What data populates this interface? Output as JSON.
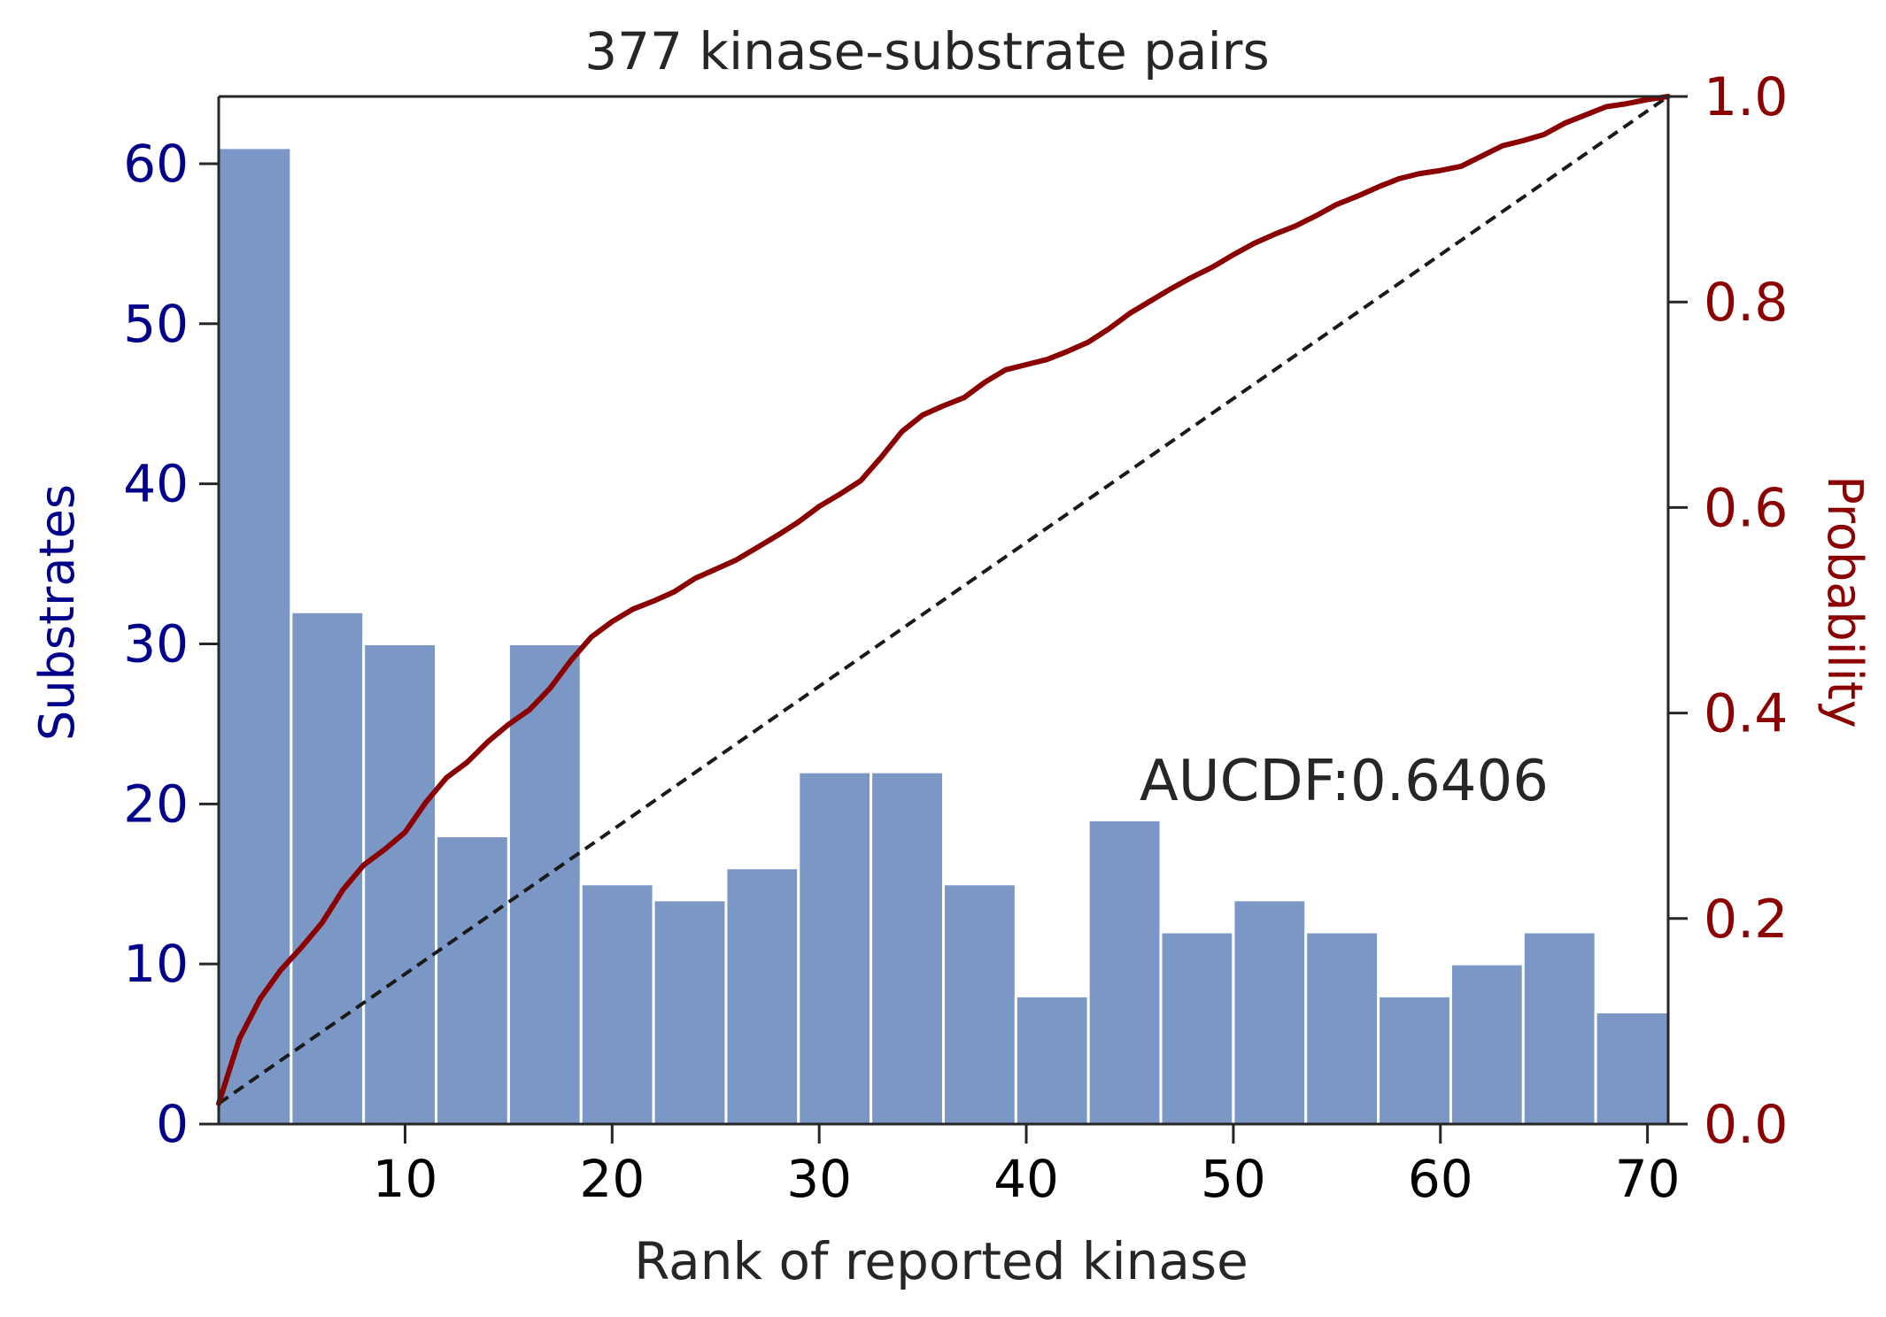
{
  "chart_data": {
    "type": "bar",
    "title": "377 kinase-substrate pairs",
    "xlabel": "Rank of reported kinase",
    "ylabel": "Substrates",
    "y2label": "Probability",
    "annotation": "AUCDF:0.6406",
    "xlim": [
      1,
      71
    ],
    "ylim": [
      0,
      64.2
    ],
    "y2lim": [
      0,
      1.0
    ],
    "x_ticks": [
      10,
      20,
      30,
      40,
      50,
      60,
      70
    ],
    "y_ticks": [
      0,
      10,
      20,
      30,
      40,
      50,
      60
    ],
    "y2_ticks": [
      "0.0",
      "0.2",
      "0.4",
      "0.6",
      "0.8",
      "1.0"
    ],
    "bins": {
      "edges": [
        1.0,
        4.5,
        8.0,
        11.5,
        15.0,
        18.5,
        22.0,
        25.5,
        29.0,
        32.5,
        36.0,
        39.5,
        43.0,
        46.5,
        50.0,
        53.5,
        57.0,
        60.5,
        64.0,
        67.5,
        71.0
      ],
      "values": [
        61,
        32,
        30,
        18,
        30,
        15,
        14,
        16,
        22,
        22,
        15,
        8,
        19,
        12,
        14,
        12,
        8,
        10,
        12,
        7
      ]
    },
    "cdf_line": {
      "x": [
        1,
        2,
        3,
        4,
        5,
        6,
        7,
        8,
        9,
        10,
        11,
        12,
        13,
        14,
        15,
        16,
        17,
        18,
        19,
        20,
        21,
        22,
        23,
        24,
        25,
        26,
        27,
        28,
        29,
        30,
        31,
        32,
        33,
        34,
        35,
        36,
        37,
        38,
        39,
        40,
        41,
        42,
        43,
        44,
        45,
        46,
        47,
        48,
        49,
        50,
        51,
        52,
        53,
        54,
        55,
        56,
        57,
        58,
        59,
        60,
        61,
        62,
        63,
        64,
        65,
        66,
        67,
        68,
        69,
        70,
        71
      ],
      "y": [
        0.02,
        0.083,
        0.122,
        0.15,
        0.172,
        0.196,
        0.228,
        0.252,
        0.267,
        0.284,
        0.313,
        0.337,
        0.352,
        0.372,
        0.389,
        0.403,
        0.424,
        0.451,
        0.474,
        0.489,
        0.501,
        0.509,
        0.518,
        0.531,
        0.54,
        0.549,
        0.561,
        0.573,
        0.586,
        0.601,
        0.613,
        0.626,
        0.649,
        0.674,
        0.69,
        0.699,
        0.707,
        0.722,
        0.734,
        0.739,
        0.744,
        0.752,
        0.761,
        0.774,
        0.789,
        0.801,
        0.813,
        0.824,
        0.834,
        0.846,
        0.857,
        0.866,
        0.874,
        0.884,
        0.895,
        0.903,
        0.912,
        0.92,
        0.925,
        0.928,
        0.932,
        0.942,
        0.952,
        0.957,
        0.963,
        0.974,
        0.982,
        0.99,
        0.993,
        0.997,
        1.0
      ]
    },
    "reference_line": {
      "x": [
        1,
        71
      ],
      "y": [
        0.02,
        1.0
      ]
    },
    "colors": {
      "bars": "#7b97c6",
      "bar_edge": "#ffffff",
      "cdf": "#8b0000",
      "reference": "#1a1a1a",
      "left_axis": "#00008b",
      "right_axis": "#8b0000",
      "text": "#262626"
    }
  }
}
